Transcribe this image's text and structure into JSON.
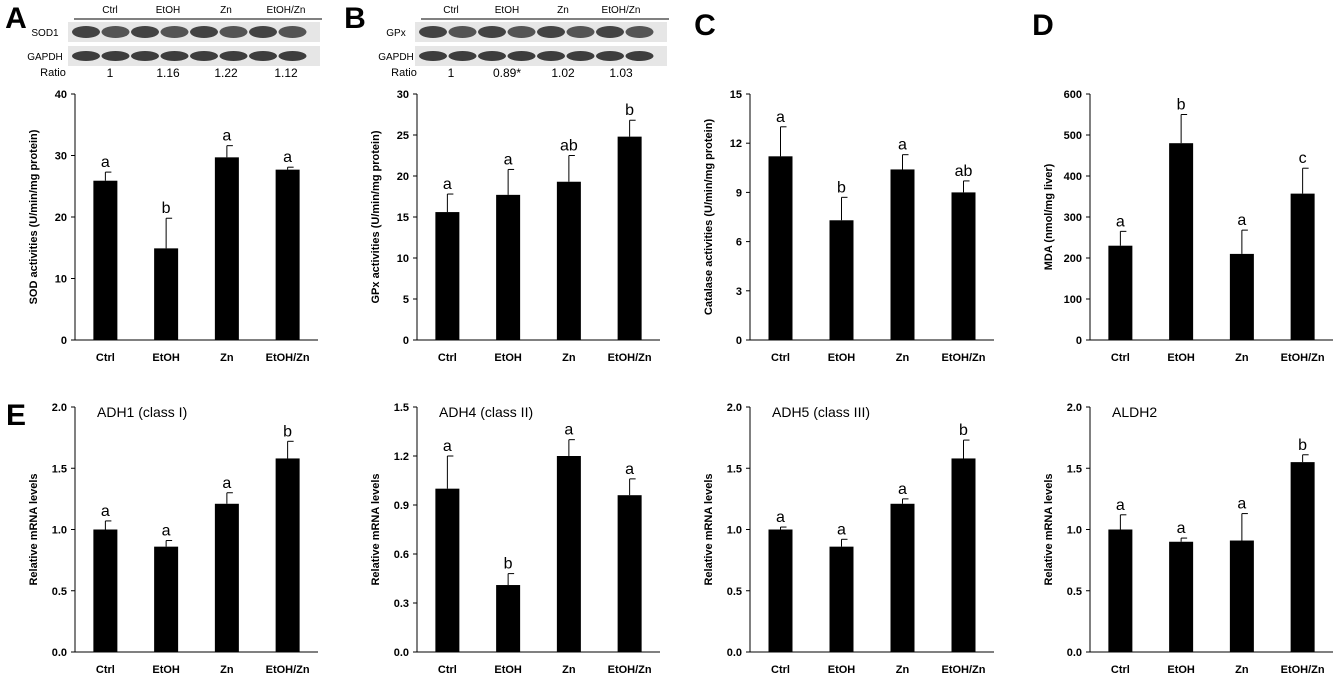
{
  "panel_letters": [
    "A",
    "B",
    "C",
    "D",
    "E"
  ],
  "blots": [
    {
      "letter": "A",
      "lanes": [
        "Ctrl",
        "EtOH",
        "Zn",
        "EtOH/Zn"
      ],
      "rows": [
        "SOD1",
        "GAPDH"
      ],
      "ratio_label": "Ratio",
      "ratios": [
        "1",
        "1.16",
        "1.22",
        "1.12"
      ]
    },
    {
      "letter": "B",
      "lanes": [
        "Ctrl",
        "EtOH",
        "Zn",
        "EtOH/Zn"
      ],
      "rows": [
        "GPx",
        "GAPDH"
      ],
      "ratio_label": "Ratio",
      "ratios": [
        "1",
        "0.89*",
        "1.02",
        "1.03"
      ]
    }
  ],
  "chart_data": [
    {
      "type": "bar",
      "panel": "A",
      "categories": [
        "Ctrl",
        "EtOH",
        "Zn",
        "EtOH/Zn"
      ],
      "values": [
        25.9,
        14.9,
        29.7,
        27.7
      ],
      "errors": [
        1.4,
        4.9,
        1.9,
        0.4
      ],
      "letters": [
        "a",
        "b",
        "a",
        "a"
      ],
      "title": "",
      "ylabel": "SOD activities (U/min/mg protein)",
      "ylim": [
        0,
        40
      ],
      "yticks": [
        "0",
        "10",
        "20",
        "30",
        "40"
      ]
    },
    {
      "type": "bar",
      "panel": "B",
      "categories": [
        "Ctrl",
        "EtOH",
        "Zn",
        "EtOH/Zn"
      ],
      "values": [
        15.6,
        17.7,
        19.3,
        24.8
      ],
      "errors": [
        2.2,
        3.1,
        3.2,
        2.0
      ],
      "letters": [
        "a",
        "a",
        "ab",
        "b"
      ],
      "title": "",
      "ylabel": "GPx activities (U/min/mg protein)",
      "ylim": [
        0,
        30
      ],
      "yticks": [
        "0",
        "5",
        "10",
        "15",
        "20",
        "25",
        "30"
      ]
    },
    {
      "type": "bar",
      "panel": "C",
      "categories": [
        "Ctrl",
        "EtOH",
        "Zn",
        "EtOH/Zn"
      ],
      "values": [
        11.2,
        7.3,
        10.4,
        9.0
      ],
      "errors": [
        1.8,
        1.4,
        0.9,
        0.7
      ],
      "letters": [
        "a",
        "b",
        "a",
        "ab"
      ],
      "title": "",
      "ylabel": "Catalase activities (U/min/mg protein)",
      "ylim": [
        0,
        15
      ],
      "yticks": [
        "0",
        "3",
        "6",
        "9",
        "12",
        "15"
      ]
    },
    {
      "type": "bar",
      "panel": "D",
      "categories": [
        "Ctrl",
        "EtOH",
        "Zn",
        "EtOH/Zn"
      ],
      "values": [
        230,
        480,
        210,
        357
      ],
      "errors": [
        35,
        70,
        58,
        62
      ],
      "letters": [
        "a",
        "b",
        "a",
        "c"
      ],
      "title": "",
      "ylabel": "MDA (nmol/mg liver)",
      "ylim": [
        0,
        600
      ],
      "yticks": [
        "0",
        "100",
        "200",
        "300",
        "400",
        "500",
        "600"
      ]
    },
    {
      "type": "bar",
      "panel": "E",
      "categories": [
        "Ctrl",
        "EtOH",
        "Zn",
        "EtOH/Zn"
      ],
      "values": [
        1.0,
        0.86,
        1.21,
        1.58
      ],
      "errors": [
        0.07,
        0.05,
        0.09,
        0.14
      ],
      "letters": [
        "a",
        "a",
        "a",
        "b"
      ],
      "title": "ADH1 (class I)",
      "ylabel": "Relative mRNA levels",
      "ylim": [
        0,
        2.0
      ],
      "yticks": [
        "0.0",
        "0.5",
        "1.0",
        "1.5",
        "2.0"
      ]
    },
    {
      "type": "bar",
      "panel": "E",
      "categories": [
        "Ctrl",
        "EtOH",
        "Zn",
        "EtOH/Zn"
      ],
      "values": [
        1.0,
        0.41,
        1.2,
        0.96
      ],
      "errors": [
        0.2,
        0.07,
        0.1,
        0.1
      ],
      "letters": [
        "a",
        "b",
        "a",
        "a"
      ],
      "title": "ADH4 (class II)",
      "ylabel": "Relative mRNA levels",
      "ylim": [
        0,
        1.5
      ],
      "yticks": [
        "0.0",
        "0.3",
        "0.6",
        "0.9",
        "1.2",
        "1.5"
      ]
    },
    {
      "type": "bar",
      "panel": "E",
      "categories": [
        "Ctrl",
        "EtOH",
        "Zn",
        "EtOH/Zn"
      ],
      "values": [
        1.0,
        0.86,
        1.21,
        1.58
      ],
      "errors": [
        0.02,
        0.06,
        0.04,
        0.15
      ],
      "letters": [
        "a",
        "a",
        "a",
        "b"
      ],
      "title": "ADH5 (class III)",
      "ylabel": "Relative mRNA levels",
      "ylim": [
        0,
        2.0
      ],
      "yticks": [
        "0.0",
        "0.5",
        "1.0",
        "1.5",
        "2.0"
      ]
    },
    {
      "type": "bar",
      "panel": "E",
      "categories": [
        "Ctrl",
        "EtOH",
        "Zn",
        "EtOH/Zn"
      ],
      "values": [
        1.0,
        0.9,
        0.91,
        1.55
      ],
      "errors": [
        0.12,
        0.03,
        0.22,
        0.06
      ],
      "letters": [
        "a",
        "a",
        "a",
        "b"
      ],
      "title": "ALDH2",
      "ylabel": "Relative mRNA levels",
      "ylim": [
        0,
        2.0
      ],
      "yticks": [
        "0.0",
        "0.5",
        "1.0",
        "1.5",
        "2.0"
      ]
    }
  ]
}
